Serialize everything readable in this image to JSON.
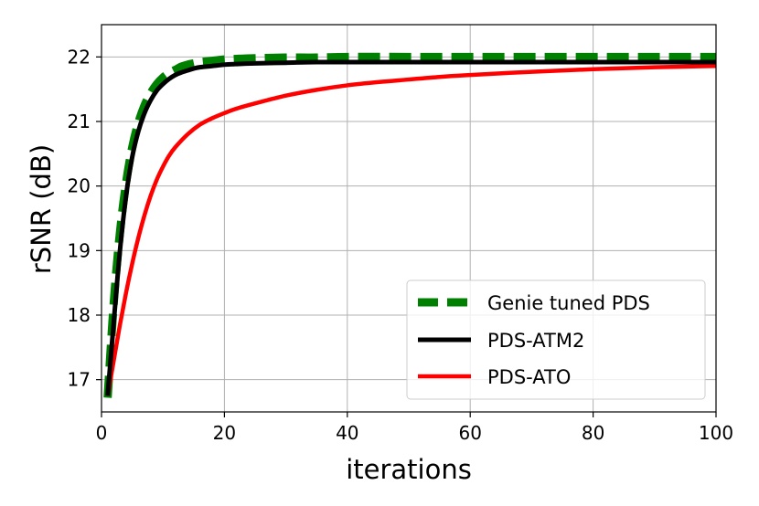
{
  "chart_data": {
    "type": "line",
    "title": "",
    "xlabel": "iterations",
    "ylabel": "rSNR (dB)",
    "xlim": [
      0,
      100
    ],
    "ylim": [
      16.5,
      22.5
    ],
    "xticks": [
      0,
      20,
      40,
      60,
      80,
      100
    ],
    "yticks": [
      17,
      18,
      19,
      20,
      21,
      22
    ],
    "grid": true,
    "legend_position": "lower-right",
    "series": [
      {
        "name": "Genie tuned PDS",
        "color": "#008000",
        "style": "dashed",
        "x": [
          1,
          2,
          3,
          4,
          5,
          6,
          7,
          8,
          9,
          10,
          11,
          12,
          13,
          14,
          15,
          16,
          18,
          20,
          22,
          25,
          30,
          35,
          40,
          50,
          60,
          70,
          80,
          90,
          100
        ],
        "y": [
          16.72,
          18.2,
          19.28,
          20.05,
          20.6,
          20.98,
          21.25,
          21.44,
          21.58,
          21.68,
          21.75,
          21.8,
          21.85,
          21.88,
          21.9,
          21.92,
          21.94,
          21.96,
          21.97,
          21.98,
          21.99,
          21.99,
          22.0,
          22.0,
          22.0,
          22.0,
          22.0,
          22.0,
          22.0
        ]
      },
      {
        "name": "PDS-ATM2",
        "color": "#000000",
        "style": "solid",
        "x": [
          1,
          2,
          3,
          4,
          5,
          6,
          7,
          8,
          9,
          10,
          11,
          12,
          13,
          14,
          15,
          16,
          18,
          20,
          22,
          25,
          30,
          35,
          40,
          50,
          60,
          70,
          80,
          90,
          100
        ],
        "y": [
          16.75,
          17.9,
          19.0,
          19.85,
          20.45,
          20.85,
          21.13,
          21.33,
          21.48,
          21.58,
          21.66,
          21.72,
          21.76,
          21.79,
          21.82,
          21.84,
          21.86,
          21.88,
          21.89,
          21.9,
          21.91,
          21.92,
          21.92,
          21.92,
          21.92,
          21.92,
          21.92,
          21.92,
          21.92
        ]
      },
      {
        "name": "PDS-ATO",
        "color": "#ff0000",
        "style": "solid",
        "x": [
          1,
          2,
          3,
          4,
          5,
          6,
          7,
          8,
          9,
          10,
          11,
          12,
          14,
          16,
          18,
          20,
          22,
          25,
          30,
          35,
          40,
          45,
          50,
          55,
          60,
          70,
          80,
          90,
          100
        ],
        "y": [
          16.75,
          17.3,
          17.85,
          18.35,
          18.8,
          19.2,
          19.55,
          19.85,
          20.1,
          20.3,
          20.47,
          20.6,
          20.8,
          20.95,
          21.05,
          21.13,
          21.2,
          21.28,
          21.4,
          21.49,
          21.56,
          21.61,
          21.65,
          21.69,
          21.72,
          21.77,
          21.81,
          21.84,
          21.86
        ]
      }
    ]
  }
}
